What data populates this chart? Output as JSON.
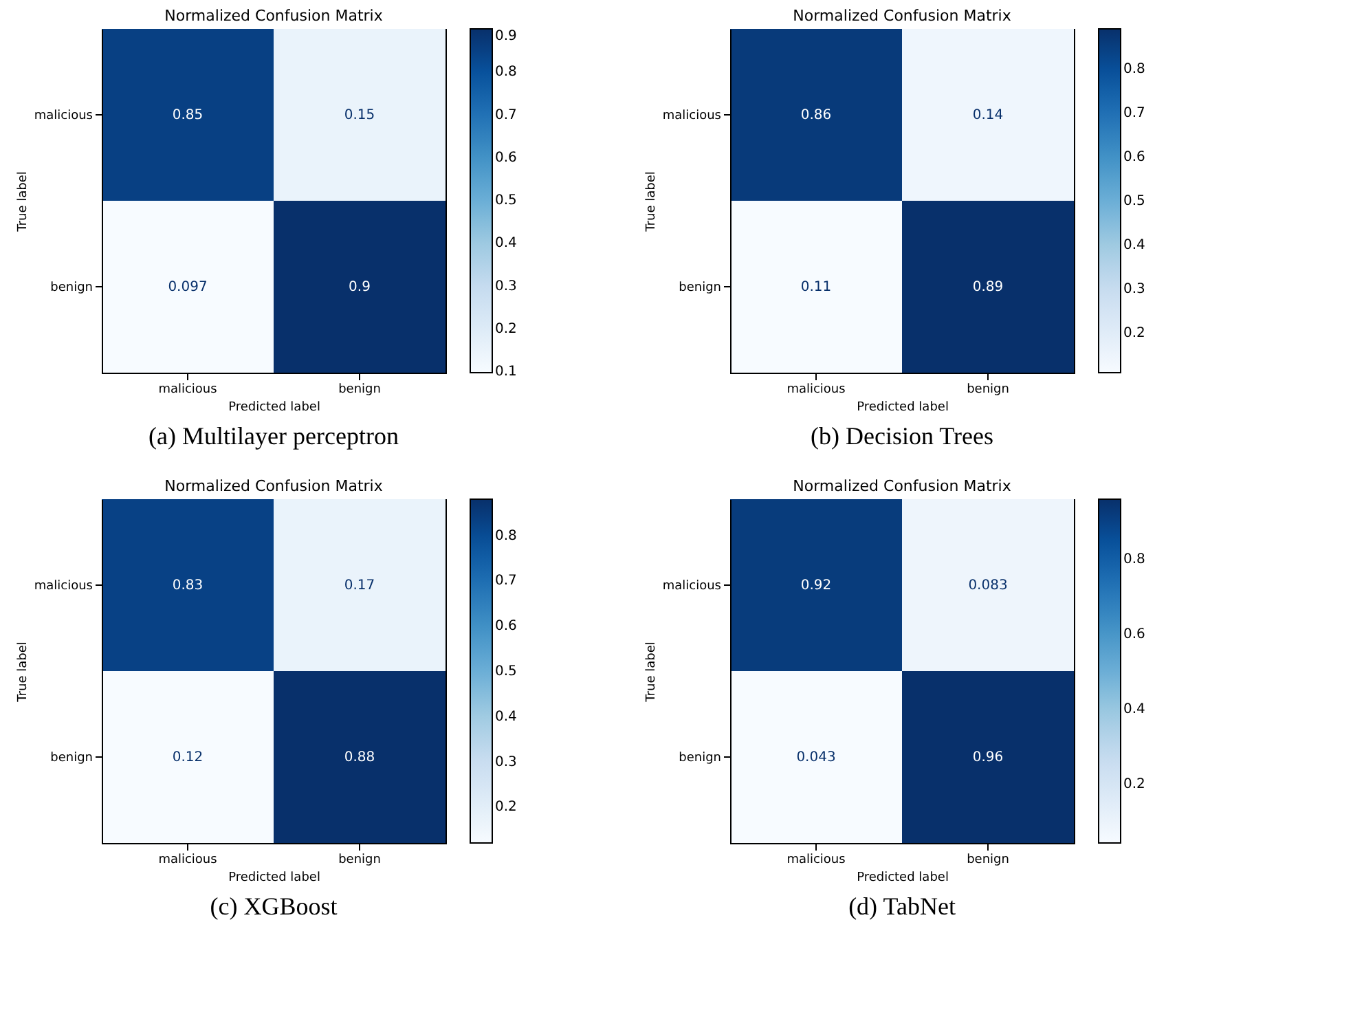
{
  "chart_data": [
    {
      "type": "heatmap",
      "title": "Normalized Confusion Matrix",
      "xlabel": "Predicted label",
      "ylabel": "True label",
      "categories": [
        "malicious",
        "benign"
      ],
      "y_categories": [
        "malicious",
        "benign"
      ],
      "cells": [
        [
          0.85,
          0.15
        ],
        [
          0.097,
          0.9
        ]
      ],
      "clim": [
        0.097,
        0.9
      ],
      "cticks": [
        0.1,
        0.2,
        0.3,
        0.4,
        0.5,
        0.6,
        0.7,
        0.8,
        0.9
      ],
      "data_labels": true,
      "annotations": [
        "(a) Multilayer perceptron"
      ]
    },
    {
      "type": "heatmap",
      "title": "Normalized Confusion Matrix",
      "xlabel": "Predicted label",
      "ylabel": "True label",
      "categories": [
        "malicious",
        "benign"
      ],
      "y_categories": [
        "malicious",
        "benign"
      ],
      "cells": [
        [
          0.86,
          0.14
        ],
        [
          0.11,
          0.89
        ]
      ],
      "clim": [
        0.11,
        0.89
      ],
      "cticks": [
        0.2,
        0.3,
        0.4,
        0.5,
        0.6,
        0.7,
        0.8
      ],
      "data_labels": true,
      "annotations": [
        "(b) Decision Trees"
      ]
    },
    {
      "type": "heatmap",
      "title": "Normalized Confusion Matrix",
      "xlabel": "Predicted label",
      "ylabel": "True label",
      "categories": [
        "malicious",
        "benign"
      ],
      "y_categories": [
        "malicious",
        "benign"
      ],
      "cells": [
        [
          0.83,
          0.17
        ],
        [
          0.12,
          0.88
        ]
      ],
      "clim": [
        0.12,
        0.88
      ],
      "cticks": [
        0.2,
        0.3,
        0.4,
        0.5,
        0.6,
        0.7,
        0.8
      ],
      "data_labels": true,
      "annotations": [
        "(c) XGBoost"
      ]
    },
    {
      "type": "heatmap",
      "title": "Normalized Confusion Matrix",
      "xlabel": "Predicted label",
      "ylabel": "True label",
      "categories": [
        "malicious",
        "benign"
      ],
      "y_categories": [
        "malicious",
        "benign"
      ],
      "cells": [
        [
          0.92,
          0.083
        ],
        [
          0.043,
          0.96
        ]
      ],
      "clim": [
        0.043,
        0.96
      ],
      "cticks": [
        0.2,
        0.4,
        0.6,
        0.8
      ],
      "data_labels": true,
      "annotations": [
        "(d) TabNet"
      ]
    }
  ]
}
